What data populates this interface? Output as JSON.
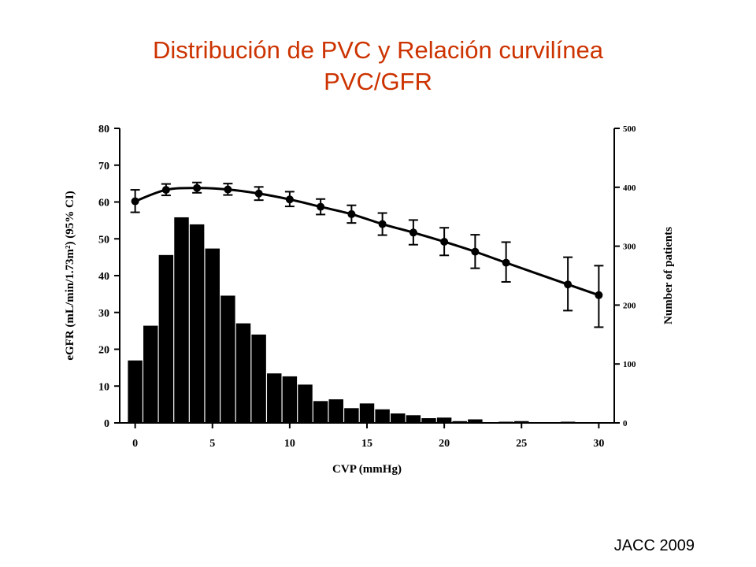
{
  "title_line1": "Distribución de PVC y Relación curvilínea",
  "title_line2": "PVC/GFR",
  "source": "JACC 2009",
  "chart_data": {
    "type": "bar+line",
    "xlabel": "CVP (mmHg)",
    "ylabel_left": "eGFR (mL/min/1.73m²) (95% CI)",
    "ylabel_right": "Number of patients",
    "xlim": [
      -1,
      31
    ],
    "ylim_left": [
      0,
      80
    ],
    "ylim_right": [
      0,
      500
    ],
    "x_ticks": [
      0,
      5,
      10,
      15,
      20,
      25,
      30
    ],
    "y_ticks_left": [
      0,
      10,
      20,
      30,
      40,
      50,
      60,
      70,
      80
    ],
    "y_ticks_right": [
      0,
      100,
      200,
      300,
      400,
      500
    ],
    "histogram": {
      "axis": "right",
      "color": "#000000",
      "x": [
        0,
        1,
        2,
        3,
        4,
        5,
        6,
        7,
        8,
        9,
        10,
        11,
        12,
        13,
        14,
        15,
        16,
        17,
        18,
        19,
        20,
        21,
        22,
        23,
        24,
        25,
        26,
        27,
        28,
        29,
        30
      ],
      "values": [
        106,
        165,
        285,
        349,
        337,
        296,
        216,
        169,
        150,
        84,
        79,
        65,
        37,
        40,
        25,
        33,
        23,
        16,
        13,
        8,
        9,
        3,
        6,
        1,
        2,
        3,
        1,
        1,
        2,
        1,
        1
      ]
    },
    "line": {
      "axis": "left",
      "color": "#000000",
      "x": [
        0,
        2,
        4,
        6,
        8,
        10,
        12,
        14,
        16,
        18,
        20,
        22,
        24,
        28,
        30
      ],
      "values": [
        60.2,
        63.3,
        63.8,
        63.4,
        62.3,
        60.7,
        58.7,
        56.7,
        54.0,
        51.7,
        49.2,
        46.5,
        43.5,
        37.6,
        34.7
      ],
      "ci_low": [
        57.2,
        61.8,
        62.5,
        61.9,
        60.5,
        58.8,
        56.6,
        54.3,
        51.0,
        48.4,
        45.5,
        42.0,
        38.3,
        30.5,
        26.0
      ],
      "ci_high": [
        63.3,
        64.9,
        65.3,
        65.0,
        64.1,
        62.8,
        60.8,
        59.1,
        57.0,
        55.1,
        53.0,
        51.1,
        49.1,
        45.0,
        42.7
      ]
    }
  }
}
